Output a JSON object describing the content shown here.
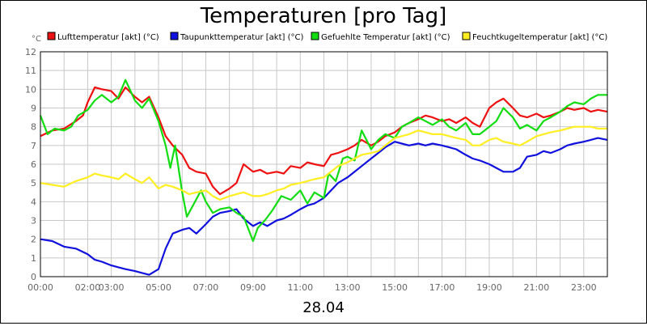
{
  "chart_data": {
    "type": "line",
    "title": "Temperaturen [pro Tag]",
    "xlabel": "28.04",
    "ylabel": "°C",
    "ylim": [
      0,
      12
    ],
    "xlim": [
      0,
      24
    ],
    "grid": true,
    "legend_position": "top",
    "y_ticks": [
      "0",
      "1",
      "2",
      "3",
      "4",
      "5",
      "6",
      "7",
      "8",
      "9",
      "10",
      "11",
      "12"
    ],
    "x_ticks": [
      {
        "x": 0,
        "label": "00:00"
      },
      {
        "x": 2,
        "label": "02:00"
      },
      {
        "x": 3,
        "label": "03:00"
      },
      {
        "x": 5,
        "label": "05:00"
      },
      {
        "x": 7,
        "label": "07:00"
      },
      {
        "x": 9,
        "label": "09:00"
      },
      {
        "x": 11,
        "label": "11:00"
      },
      {
        "x": 13,
        "label": "13:00"
      },
      {
        "x": 15,
        "label": "15:00"
      },
      {
        "x": 17,
        "label": "17:00"
      },
      {
        "x": 19,
        "label": "19:00"
      },
      {
        "x": 21,
        "label": "21:00"
      },
      {
        "x": 23,
        "label": "23:00"
      }
    ],
    "series": [
      {
        "name": "Lufttemperatur [akt] (°C)",
        "color": "#ee1111",
        "points": [
          [
            0,
            7.5
          ],
          [
            0.5,
            7.8
          ],
          [
            1,
            7.9
          ],
          [
            1.5,
            8.3
          ],
          [
            1.8,
            8.6
          ],
          [
            2,
            9.3
          ],
          [
            2.3,
            10.1
          ],
          [
            2.6,
            10.0
          ],
          [
            3,
            9.9
          ],
          [
            3.3,
            9.5
          ],
          [
            3.6,
            10.1
          ],
          [
            4,
            9.6
          ],
          [
            4.3,
            9.3
          ],
          [
            4.6,
            9.6
          ],
          [
            5,
            8.5
          ],
          [
            5.3,
            7.5
          ],
          [
            5.6,
            7.0
          ],
          [
            6,
            6.5
          ],
          [
            6.3,
            5.8
          ],
          [
            6.6,
            5.6
          ],
          [
            7,
            5.5
          ],
          [
            7.3,
            4.8
          ],
          [
            7.6,
            4.4
          ],
          [
            8,
            4.7
          ],
          [
            8.3,
            5.0
          ],
          [
            8.6,
            6.0
          ],
          [
            9,
            5.6
          ],
          [
            9.3,
            5.7
          ],
          [
            9.6,
            5.5
          ],
          [
            10,
            5.6
          ],
          [
            10.3,
            5.5
          ],
          [
            10.6,
            5.9
          ],
          [
            11,
            5.8
          ],
          [
            11.3,
            6.1
          ],
          [
            11.6,
            6.0
          ],
          [
            12,
            5.9
          ],
          [
            12.3,
            6.5
          ],
          [
            12.6,
            6.6
          ],
          [
            13,
            6.8
          ],
          [
            13.3,
            7.0
          ],
          [
            13.6,
            7.3
          ],
          [
            14,
            7.0
          ],
          [
            14.3,
            7.2
          ],
          [
            14.6,
            7.5
          ],
          [
            15,
            7.7
          ],
          [
            15.3,
            8.0
          ],
          [
            15.6,
            8.2
          ],
          [
            16,
            8.4
          ],
          [
            16.3,
            8.6
          ],
          [
            16.6,
            8.5
          ],
          [
            17,
            8.3
          ],
          [
            17.3,
            8.4
          ],
          [
            17.6,
            8.2
          ],
          [
            18,
            8.5
          ],
          [
            18.3,
            8.2
          ],
          [
            18.6,
            8.0
          ],
          [
            19,
            9.0
          ],
          [
            19.3,
            9.3
          ],
          [
            19.6,
            9.5
          ],
          [
            20,
            9.0
          ],
          [
            20.3,
            8.6
          ],
          [
            20.6,
            8.5
          ],
          [
            21,
            8.7
          ],
          [
            21.3,
            8.5
          ],
          [
            21.6,
            8.6
          ],
          [
            22,
            8.8
          ],
          [
            22.3,
            9.0
          ],
          [
            22.6,
            8.9
          ],
          [
            23,
            9.0
          ],
          [
            23.3,
            8.8
          ],
          [
            23.6,
            8.9
          ],
          [
            24,
            8.8
          ]
        ]
      },
      {
        "name": "Taupunkttemperatur [akt] (°C)",
        "color": "#1111dd",
        "points": [
          [
            0,
            2.0
          ],
          [
            0.5,
            1.9
          ],
          [
            1,
            1.6
          ],
          [
            1.5,
            1.5
          ],
          [
            2,
            1.2
          ],
          [
            2.3,
            0.9
          ],
          [
            2.6,
            0.8
          ],
          [
            3,
            0.6
          ],
          [
            3.3,
            0.5
          ],
          [
            3.6,
            0.4
          ],
          [
            4,
            0.3
          ],
          [
            4.3,
            0.2
          ],
          [
            4.6,
            0.1
          ],
          [
            5,
            0.4
          ],
          [
            5.3,
            1.5
          ],
          [
            5.6,
            2.3
          ],
          [
            6,
            2.5
          ],
          [
            6.3,
            2.6
          ],
          [
            6.6,
            2.3
          ],
          [
            7,
            2.8
          ],
          [
            7.3,
            3.2
          ],
          [
            7.6,
            3.4
          ],
          [
            8,
            3.5
          ],
          [
            8.3,
            3.6
          ],
          [
            8.6,
            3.1
          ],
          [
            9,
            2.7
          ],
          [
            9.3,
            2.9
          ],
          [
            9.6,
            2.7
          ],
          [
            10,
            3.0
          ],
          [
            10.3,
            3.1
          ],
          [
            10.6,
            3.3
          ],
          [
            11,
            3.6
          ],
          [
            11.3,
            3.8
          ],
          [
            11.6,
            3.9
          ],
          [
            12,
            4.2
          ],
          [
            12.3,
            4.6
          ],
          [
            12.6,
            5.0
          ],
          [
            13,
            5.3
          ],
          [
            13.3,
            5.6
          ],
          [
            13.6,
            5.9
          ],
          [
            14,
            6.3
          ],
          [
            14.3,
            6.6
          ],
          [
            14.6,
            6.9
          ],
          [
            15,
            7.2
          ],
          [
            15.3,
            7.1
          ],
          [
            15.6,
            7.0
          ],
          [
            16,
            7.1
          ],
          [
            16.3,
            7.0
          ],
          [
            16.6,
            7.1
          ],
          [
            17,
            7.0
          ],
          [
            17.3,
            6.9
          ],
          [
            17.6,
            6.8
          ],
          [
            18,
            6.5
          ],
          [
            18.3,
            6.3
          ],
          [
            18.6,
            6.2
          ],
          [
            19,
            6.0
          ],
          [
            19.3,
            5.8
          ],
          [
            19.6,
            5.6
          ],
          [
            20,
            5.6
          ],
          [
            20.3,
            5.8
          ],
          [
            20.6,
            6.4
          ],
          [
            21,
            6.5
          ],
          [
            21.3,
            6.7
          ],
          [
            21.6,
            6.6
          ],
          [
            22,
            6.8
          ],
          [
            22.3,
            7.0
          ],
          [
            22.6,
            7.1
          ],
          [
            23,
            7.2
          ],
          [
            23.3,
            7.3
          ],
          [
            23.6,
            7.4
          ],
          [
            24,
            7.3
          ]
        ]
      },
      {
        "name": "Gefuehlte Temperatur [akt] (°C)",
        "color": "#11dd11",
        "points": [
          [
            0,
            8.6
          ],
          [
            0.3,
            7.6
          ],
          [
            0.6,
            7.9
          ],
          [
            1,
            7.8
          ],
          [
            1.3,
            8.0
          ],
          [
            1.6,
            8.6
          ],
          [
            2,
            8.9
          ],
          [
            2.3,
            9.4
          ],
          [
            2.6,
            9.7
          ],
          [
            3,
            9.3
          ],
          [
            3.3,
            9.6
          ],
          [
            3.6,
            10.5
          ],
          [
            4,
            9.4
          ],
          [
            4.3,
            9.0
          ],
          [
            4.6,
            9.5
          ],
          [
            5,
            8.3
          ],
          [
            5.3,
            7.0
          ],
          [
            5.5,
            5.8
          ],
          [
            5.7,
            7.0
          ],
          [
            6,
            4.5
          ],
          [
            6.2,
            3.2
          ],
          [
            6.5,
            3.9
          ],
          [
            6.8,
            4.6
          ],
          [
            7,
            4.0
          ],
          [
            7.3,
            3.4
          ],
          [
            7.6,
            3.6
          ],
          [
            8,
            3.7
          ],
          [
            8.3,
            3.4
          ],
          [
            8.6,
            3.2
          ],
          [
            9,
            1.9
          ],
          [
            9.2,
            2.6
          ],
          [
            9.5,
            3.0
          ],
          [
            9.8,
            3.5
          ],
          [
            10.2,
            4.3
          ],
          [
            10.6,
            4.1
          ],
          [
            11,
            4.6
          ],
          [
            11.3,
            3.9
          ],
          [
            11.6,
            4.5
          ],
          [
            12,
            4.2
          ],
          [
            12.2,
            5.5
          ],
          [
            12.5,
            5.1
          ],
          [
            12.8,
            6.3
          ],
          [
            13,
            6.4
          ],
          [
            13.3,
            6.2
          ],
          [
            13.6,
            7.8
          ],
          [
            14,
            6.8
          ],
          [
            14.3,
            7.3
          ],
          [
            14.6,
            7.6
          ],
          [
            15,
            7.4
          ],
          [
            15.3,
            8.0
          ],
          [
            15.6,
            8.2
          ],
          [
            16,
            8.5
          ],
          [
            16.3,
            8.3
          ],
          [
            16.6,
            8.1
          ],
          [
            17,
            8.4
          ],
          [
            17.3,
            8.0
          ],
          [
            17.6,
            7.8
          ],
          [
            18,
            8.2
          ],
          [
            18.3,
            7.6
          ],
          [
            18.6,
            7.6
          ],
          [
            19,
            8.0
          ],
          [
            19.3,
            8.3
          ],
          [
            19.6,
            9.0
          ],
          [
            20,
            8.5
          ],
          [
            20.3,
            7.9
          ],
          [
            20.6,
            8.1
          ],
          [
            21,
            7.8
          ],
          [
            21.3,
            8.3
          ],
          [
            21.6,
            8.5
          ],
          [
            22,
            8.8
          ],
          [
            22.3,
            9.1
          ],
          [
            22.6,
            9.3
          ],
          [
            23,
            9.2
          ],
          [
            23.3,
            9.5
          ],
          [
            23.6,
            9.7
          ],
          [
            24,
            9.7
          ]
        ]
      },
      {
        "name": "Feuchtkugeltemperatur [akt] (°C)",
        "color": "#ffee22",
        "points": [
          [
            0,
            5.0
          ],
          [
            0.5,
            4.9
          ],
          [
            1,
            4.8
          ],
          [
            1.5,
            5.1
          ],
          [
            2,
            5.3
          ],
          [
            2.3,
            5.5
          ],
          [
            2.6,
            5.4
          ],
          [
            3,
            5.3
          ],
          [
            3.3,
            5.2
          ],
          [
            3.6,
            5.5
          ],
          [
            4,
            5.2
          ],
          [
            4.3,
            5.0
          ],
          [
            4.6,
            5.3
          ],
          [
            5,
            4.7
          ],
          [
            5.3,
            4.9
          ],
          [
            5.6,
            4.8
          ],
          [
            6,
            4.6
          ],
          [
            6.3,
            4.4
          ],
          [
            6.6,
            4.5
          ],
          [
            7,
            4.6
          ],
          [
            7.3,
            4.3
          ],
          [
            7.6,
            4.1
          ],
          [
            8,
            4.3
          ],
          [
            8.3,
            4.4
          ],
          [
            8.6,
            4.5
          ],
          [
            9,
            4.3
          ],
          [
            9.3,
            4.3
          ],
          [
            9.6,
            4.4
          ],
          [
            10,
            4.6
          ],
          [
            10.3,
            4.7
          ],
          [
            10.6,
            4.9
          ],
          [
            11,
            5.0
          ],
          [
            11.3,
            5.1
          ],
          [
            11.6,
            5.2
          ],
          [
            12,
            5.3
          ],
          [
            12.3,
            5.6
          ],
          [
            12.6,
            5.9
          ],
          [
            13,
            6.1
          ],
          [
            13.3,
            6.3
          ],
          [
            13.6,
            6.5
          ],
          [
            14,
            6.6
          ],
          [
            14.3,
            6.7
          ],
          [
            14.6,
            7.0
          ],
          [
            15,
            7.4
          ],
          [
            15.3,
            7.5
          ],
          [
            15.6,
            7.6
          ],
          [
            16,
            7.8
          ],
          [
            16.3,
            7.7
          ],
          [
            16.6,
            7.6
          ],
          [
            17,
            7.6
          ],
          [
            17.3,
            7.5
          ],
          [
            17.6,
            7.4
          ],
          [
            18,
            7.3
          ],
          [
            18.3,
            7.0
          ],
          [
            18.6,
            7.0
          ],
          [
            19,
            7.3
          ],
          [
            19.3,
            7.4
          ],
          [
            19.6,
            7.2
          ],
          [
            20,
            7.1
          ],
          [
            20.3,
            7.0
          ],
          [
            20.6,
            7.2
          ],
          [
            21,
            7.5
          ],
          [
            21.3,
            7.6
          ],
          [
            21.6,
            7.7
          ],
          [
            22,
            7.8
          ],
          [
            22.3,
            7.9
          ],
          [
            22.6,
            8.0
          ],
          [
            23,
            8.0
          ],
          [
            23.3,
            8.0
          ],
          [
            23.6,
            7.9
          ],
          [
            24,
            7.9
          ]
        ]
      }
    ]
  }
}
